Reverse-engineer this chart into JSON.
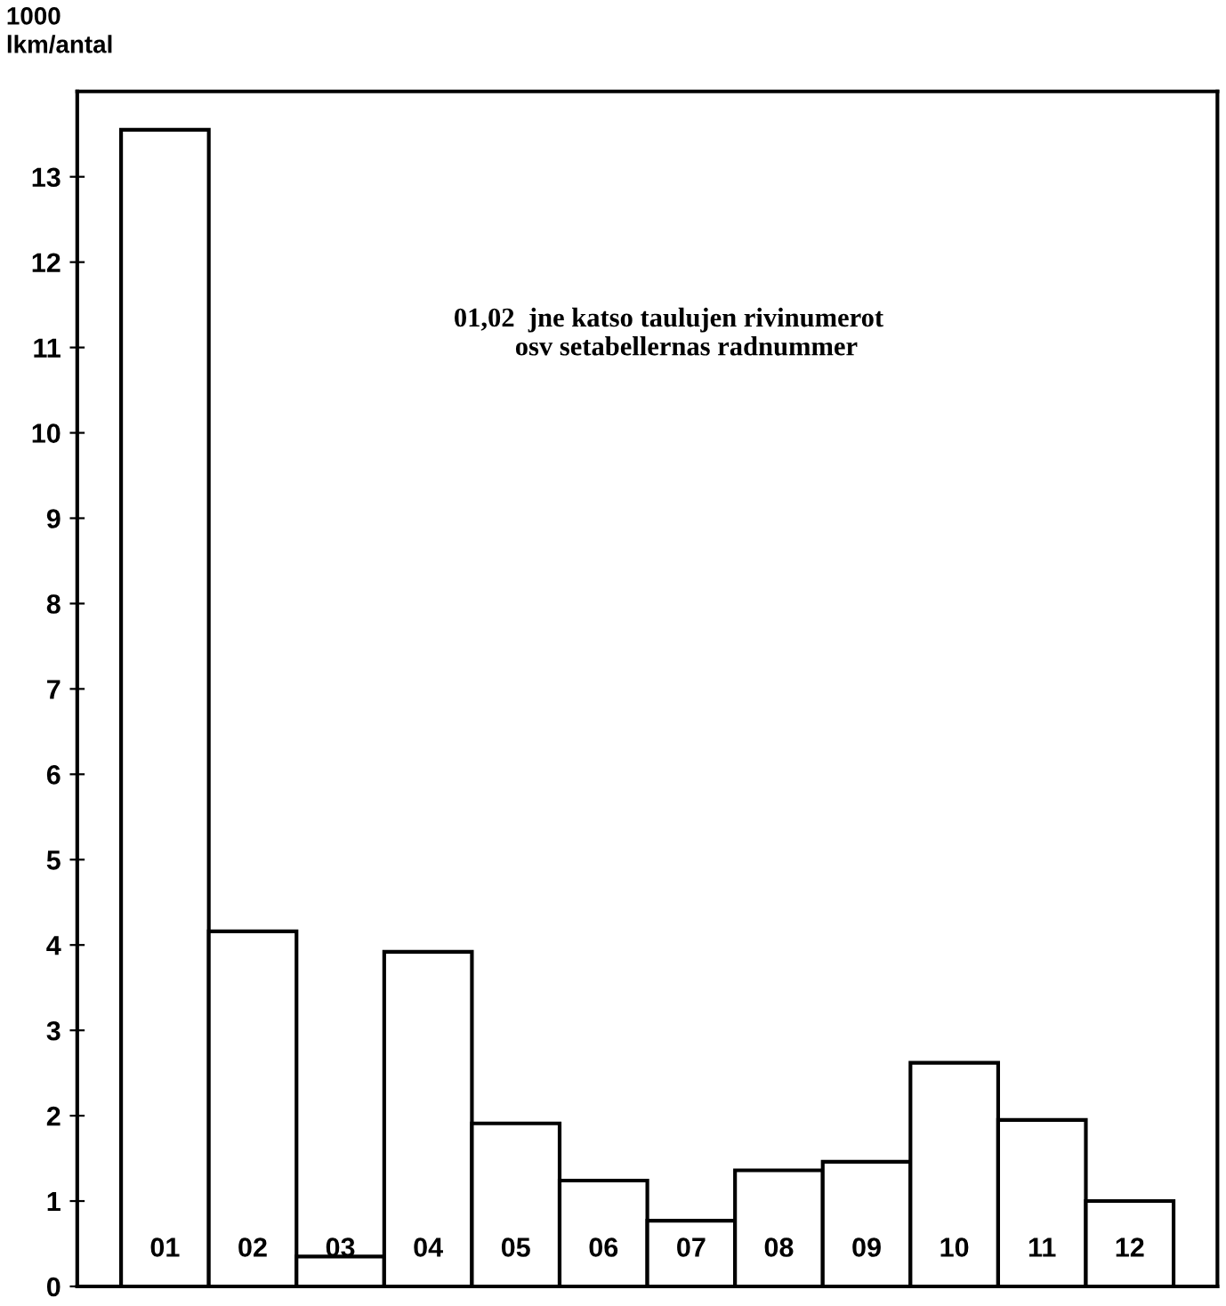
{
  "chart_data": {
    "type": "bar",
    "ylabel": "1000\nlkm/antal",
    "categories": [
      "01",
      "02",
      "03",
      "04",
      "05",
      "06",
      "07",
      "08",
      "09",
      "10",
      "11",
      "12"
    ],
    "values": [
      13.55,
      4.16,
      0.35,
      3.92,
      1.91,
      1.24,
      0.77,
      1.36,
      1.46,
      2.62,
      1.95,
      1.0
    ],
    "color": "#ffffff",
    "ylim": [
      0,
      14
    ],
    "yticks": [
      0,
      1,
      2,
      3,
      4,
      5,
      6,
      7,
      8,
      9,
      10,
      11,
      12,
      13
    ],
    "grid": false,
    "legend": false,
    "annotations": [
      "01,02  jne katso taulujen rivinumerot",
      "osv setabellernas radnummer"
    ]
  }
}
